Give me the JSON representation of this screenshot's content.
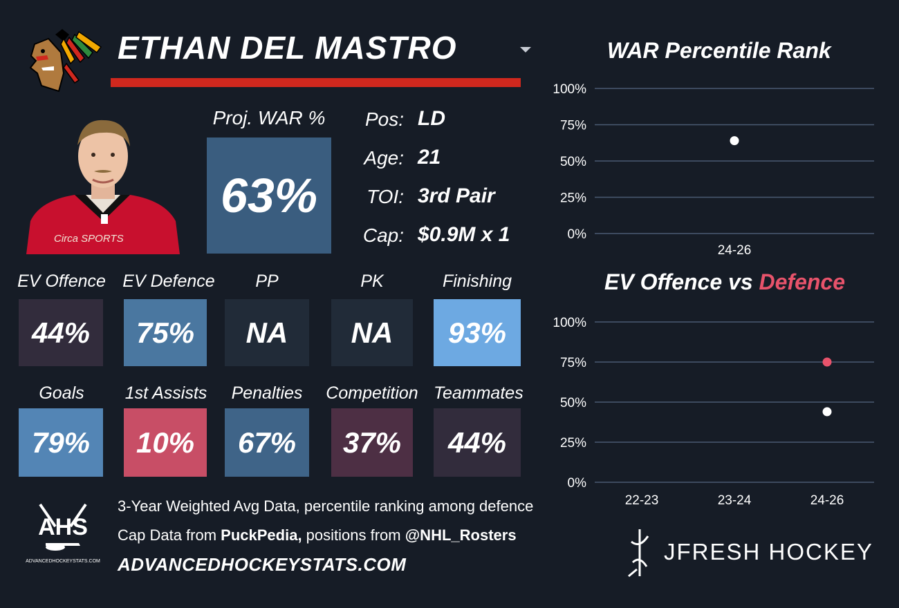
{
  "player": {
    "name": "ETHAN DEL MASTRO",
    "proj_war_label": "Proj. WAR %",
    "proj_war_value": "63%",
    "info": [
      {
        "label": "Pos:",
        "value": "LD"
      },
      {
        "label": "Age:",
        "value": "21"
      },
      {
        "label": "TOI:",
        "value": "3rd Pair"
      },
      {
        "label": "Cap:",
        "value": "$0.9M x 1"
      }
    ],
    "jersey_text": "Circa SPORTS"
  },
  "icons": {
    "team_logo": "blackhawks-logo-icon",
    "dropdown": "chevron-down-icon",
    "ahs": "ahs-logo-icon",
    "jfresh": "jfresh-logo-icon"
  },
  "tiles_row1": [
    {
      "label": "EV Offence",
      "value": "44%",
      "color": "#322c3c"
    },
    {
      "label": "EV Defence",
      "value": "75%",
      "color": "#4a77a0"
    },
    {
      "label": "PP",
      "value": "NA",
      "color": "#212b38"
    },
    {
      "label": "PK",
      "value": "NA",
      "color": "#212b38"
    },
    {
      "label": "Finishing",
      "value": "93%",
      "color": "#6da9e2"
    }
  ],
  "tiles_row2": [
    {
      "label": "Goals",
      "value": "79%",
      "color": "#5385b5"
    },
    {
      "label": "1st Assists",
      "value": "10%",
      "color": "#c84e66"
    },
    {
      "label": "Penalties",
      "value": "67%",
      "color": "#3f6488"
    },
    {
      "label": "Competition",
      "value": "37%",
      "color": "#4d2f44"
    },
    {
      "label": "Teammates",
      "value": "44%",
      "color": "#322c3c"
    }
  ],
  "chart_data": [
    {
      "type": "scatter",
      "title": "WAR Percentile Rank",
      "categories": [
        "24-26"
      ],
      "series": [
        {
          "values": [
            64
          ],
          "color": "#ffffff"
        }
      ],
      "ylim": [
        0,
        100
      ],
      "yticks": [
        "0%",
        "25%",
        "50%",
        "75%",
        "100%"
      ],
      "grid": true
    },
    {
      "type": "scatter",
      "title": "EV Offence vs Defence",
      "title_parts": [
        "EV Offence vs ",
        "Defence"
      ],
      "categories": [
        "22-23",
        "23-24",
        "24-26"
      ],
      "series": [
        {
          "values": [
            null,
            null,
            44
          ],
          "color": "#ffffff"
        },
        {
          "values": [
            null,
            null,
            75
          ],
          "color": "#e8536b"
        }
      ],
      "ylim": [
        0,
        100
      ],
      "yticks": [
        "0%",
        "25%",
        "50%",
        "75%",
        "100%"
      ],
      "grid": true
    }
  ],
  "colors": {
    "background": "#161c26",
    "underline": "#d0281e",
    "grid": "#4a5a72",
    "defence": "#e8536b",
    "proj_box": "#3a5d7f"
  },
  "footer": {
    "ahs_text": "AHS",
    "ahs_small": "ADVANCEDHOCKEYSTATS.COM",
    "line1": "3-Year Weighted Avg Data, percentile ranking among defence",
    "line2_pre": "Cap Data from ",
    "line2_bold1": "PuckPedia,",
    "line2_mid": " positions from ",
    "line2_bold2": "@NHL_Rosters",
    "site": "ADVANCEDHOCKEYSTATS.COM",
    "brand": "JFRESH HOCKEY"
  }
}
